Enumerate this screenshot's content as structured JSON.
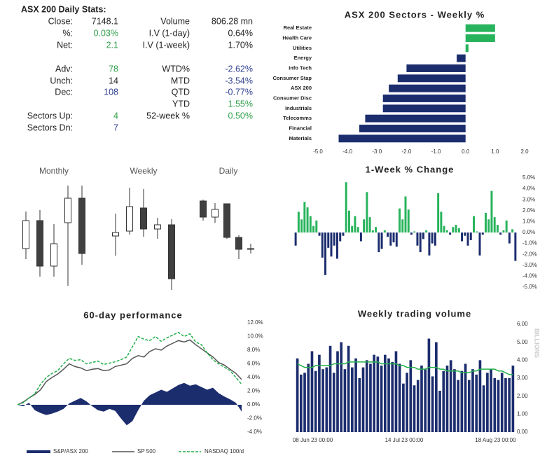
{
  "stats": {
    "title": "ASX 200 Daily Stats:",
    "left": [
      {
        "label": "Close:",
        "value": "7148.1",
        "color": "#222222"
      },
      {
        "label": "%:",
        "value": "0.03%",
        "color": "#2e9e48"
      },
      {
        "label": "Net:",
        "value": "2.1",
        "color": "#2e9e48"
      },
      {
        "label": "Adv:",
        "value": "78",
        "color": "#2e9e48"
      },
      {
        "label": "Unch:",
        "value": "14",
        "color": "#222222"
      },
      {
        "label": "Dec:",
        "value": "108",
        "color": "#2f3f8f"
      },
      {
        "label": "Sectors Up:",
        "value": "4",
        "color": "#2e9e48"
      },
      {
        "label": "Sectors Dn:",
        "value": "7",
        "color": "#2f3f8f"
      }
    ],
    "right": [
      {
        "label": "Volume",
        "value": "806.28 mn",
        "color": "#222222"
      },
      {
        "label": "I.V (1-day)",
        "value": "0.64%",
        "color": "#222222"
      },
      {
        "label": "I.V (1-week)",
        "value": "1.70%",
        "color": "#222222"
      },
      {
        "label": "WTD%",
        "value": "-2.62%",
        "color": "#2f3f8f"
      },
      {
        "label": "MTD",
        "value": "-3.54%",
        "color": "#2f3f8f"
      },
      {
        "label": "QTD",
        "value": "-0.77%",
        "color": "#2f3f8f"
      },
      {
        "label": "YTD",
        "value": "1.55%",
        "color": "#2e9e48"
      },
      {
        "label": "52-week %",
        "value": "0.50%",
        "color": "#2e9e48"
      }
    ]
  },
  "chart_data": [
    {
      "type": "bar",
      "orientation": "horizontal",
      "title": "ASX 200 Sectors - Weekly %",
      "categories": [
        "Real Estate",
        "Health Care",
        "Utilities",
        "Energy",
        "Info Tech",
        "Consumer Stap",
        "ASX 200",
        "Consumer Disc",
        "Industrials",
        "Telecomms",
        "Financial",
        "Materials"
      ],
      "values": [
        1.0,
        1.0,
        0.1,
        -0.3,
        -2.0,
        -2.3,
        -2.6,
        -2.8,
        -2.8,
        -3.4,
        -3.6,
        -4.3
      ],
      "positive_color": "#27b35b",
      "negative_color": "#1c2d6e",
      "xlim": [
        -5,
        2
      ],
      "xticks": [
        {
          "value": -5,
          "label": "-5.0"
        },
        {
          "value": -4,
          "label": "-4.0"
        },
        {
          "value": -3,
          "label": "-3.0"
        },
        {
          "value": -2,
          "label": "-2.0"
        },
        {
          "value": -1,
          "label": "-1.0"
        },
        {
          "value": 0,
          "label": "0.0"
        },
        {
          "value": 1,
          "label": "1.0"
        },
        {
          "value": 2,
          "label": "2.0"
        }
      ]
    },
    {
      "type": "candlestick",
      "title": "Monthly",
      "up_color": "#ffffff",
      "down_color": "#404040",
      "ylim": [
        0,
        160
      ],
      "open": [
        65,
        105,
        40,
        102,
        137
      ],
      "high": [
        118,
        120,
        100,
        155,
        155
      ],
      "low": [
        50,
        25,
        25,
        12,
        42
      ],
      "close": [
        105,
        40,
        72,
        137,
        58
      ]
    },
    {
      "type": "candlestick",
      "title": "Weekly",
      "up_color": "#ffffff",
      "down_color": "#404040",
      "ylim": [
        0,
        160
      ],
      "open": [
        83,
        90,
        123,
        93,
        99
      ],
      "high": [
        115,
        152,
        150,
        109,
        107
      ],
      "low": [
        55,
        85,
        82,
        79,
        6
      ],
      "close": [
        88,
        125,
        93,
        99,
        22
      ]
    },
    {
      "type": "candlestick",
      "title": "Daily",
      "up_color": "#ffffff",
      "down_color": "#404040",
      "ylim": [
        0,
        160
      ],
      "open": [
        133,
        110,
        129,
        81,
        65
      ],
      "high": [
        135,
        130,
        129,
        84,
        72
      ],
      "low": [
        105,
        102,
        79,
        50,
        58
      ],
      "close": [
        110,
        121,
        81,
        64,
        64
      ]
    },
    {
      "type": "bar",
      "title": "1-Week % Change",
      "values": [
        -1.2,
        1.9,
        1.2,
        2.8,
        2.3,
        1.5,
        0.6,
        1.1,
        -0.3,
        -2.3,
        -3.9,
        -1.4,
        -2.2,
        -1.2,
        -2.4,
        -0.8,
        -0.3,
        4.6,
        2.0,
        0.6,
        1.5,
        0.5,
        -0.8,
        1.2,
        3.7,
        1.4,
        0.2,
        0.5,
        -1.8,
        -1.5,
        0.2,
        -0.4,
        -1.2,
        -0.9,
        -1.3,
        2.2,
        1.2,
        3.3,
        2.1,
        -0.2,
        0.1,
        -1.2,
        -1.8,
        -0.6,
        0.2,
        -2.1,
        -1.0,
        -1.2,
        3.6,
        1.9,
        0.6,
        0.2,
        -0.2,
        0.5,
        0.7,
        0.4,
        -0.8,
        -0.3,
        -1.2,
        -0.7,
        1.5,
        0.1,
        -2.1,
        -0.2,
        1.8,
        1.2,
        3.8,
        1.4,
        0.7,
        -0.2,
        0.2,
        1.1,
        -1.0,
        0.3,
        -2.6
      ],
      "positive_color": "#27b35b",
      "negative_color": "#1c2d6e",
      "ylim": [
        -5,
        5
      ],
      "yticks": [
        {
          "value": 5,
          "label": "5.0%"
        },
        {
          "value": 4,
          "label": "4.0%"
        },
        {
          "value": 3,
          "label": "3.0%"
        },
        {
          "value": 2,
          "label": "2.0%"
        },
        {
          "value": 1,
          "label": "1.0%"
        },
        {
          "value": 0,
          "label": "0.0%"
        },
        {
          "value": -1,
          "label": "-1.0%"
        },
        {
          "value": -2,
          "label": "-2.0%"
        },
        {
          "value": -3,
          "label": "-3.0%"
        },
        {
          "value": -4,
          "label": "-4.0%"
        },
        {
          "value": -5,
          "label": "-5.0%"
        }
      ]
    },
    {
      "type": "line",
      "title": "60-day performance",
      "series": [
        {
          "name": "S&P/ASX 200",
          "color": "#1c2d6e",
          "style": "area",
          "values": [
            0,
            -0.2,
            0.3,
            -0.8,
            -1.2,
            -1.5,
            -1.3,
            -1.0,
            -0.6,
            0.2,
            0.6,
            1.0,
            0.5,
            -0.2,
            -0.8,
            -1.0,
            -0.6,
            -0.9,
            -2.0,
            -3.0,
            -2.4,
            -0.8,
            0.6,
            1.4,
            1.8,
            2.2,
            1.9,
            2.4,
            2.9,
            3.2,
            2.8,
            3.0,
            2.6,
            2.2,
            2.5,
            1.7,
            1.2,
            0.8,
            0.3,
            -1.0
          ]
        },
        {
          "name": "SP 500",
          "color": "#555555",
          "style": "solid",
          "values": [
            0,
            0.4,
            1.0,
            1.5,
            2.2,
            3.4,
            4.0,
            4.5,
            5.2,
            6.0,
            5.6,
            5.4,
            5.0,
            5.2,
            5.3,
            5.0,
            5.1,
            5.6,
            5.8,
            6.0,
            6.8,
            7.2,
            7.0,
            7.8,
            8.2,
            8.0,
            8.6,
            9.0,
            9.4,
            9.2,
            9.5,
            8.8,
            8.2,
            7.6,
            7.0,
            6.2,
            5.8,
            5.2,
            4.6,
            3.7
          ]
        },
        {
          "name": "NASDAQ 100/d",
          "color": "#22b04b",
          "style": "dashed",
          "values": [
            0,
            0.3,
            1.0,
            1.6,
            3.0,
            4.0,
            4.6,
            5.0,
            6.0,
            6.8,
            6.5,
            6.6,
            6.0,
            6.2,
            6.4,
            5.9,
            6.1,
            6.3,
            6.6,
            7.0,
            8.5,
            10.0,
            9.6,
            9.4,
            10.0,
            9.3,
            9.8,
            10.2,
            10.6,
            10.0,
            10.4,
            9.2,
            8.8,
            7.6,
            6.6,
            6.0,
            5.5,
            5.0,
            4.0,
            3.0
          ]
        }
      ],
      "ylim": [
        -4,
        12
      ],
      "yticks": [
        {
          "value": 12,
          "label": "12.0%"
        },
        {
          "value": 10,
          "label": "10.0%"
        },
        {
          "value": 8,
          "label": "8.0%"
        },
        {
          "value": 6,
          "label": "6.0%"
        },
        {
          "value": 4,
          "label": "4.0%"
        },
        {
          "value": 2,
          "label": "2.0%"
        },
        {
          "value": 0,
          "label": "0.0%"
        },
        {
          "value": -2,
          "label": "-2.0%"
        },
        {
          "value": -4,
          "label": "-4.0%"
        }
      ]
    },
    {
      "type": "bar",
      "title": "Weekly trading volume",
      "ylabel": "BILLIONS",
      "categories": [
        null,
        null,
        null,
        null,
        null,
        null,
        null,
        null,
        null,
        "08 Jun 23 00:00",
        null,
        null,
        null,
        null,
        null,
        null,
        null,
        null,
        null,
        null,
        null,
        null,
        null,
        null,
        null,
        null,
        null,
        null,
        null,
        null,
        null,
        null,
        null,
        null,
        "14 Jul 23 00:00",
        null,
        null,
        null,
        null,
        null,
        null,
        null,
        null,
        null,
        null,
        null,
        null,
        null,
        null,
        null,
        null,
        null,
        null,
        null,
        null,
        null,
        null,
        null,
        null,
        "18 Aug 23 00:00"
      ],
      "series": [
        {
          "type": "bar",
          "color": "#1c2d6e",
          "values": [
            4.1,
            3.2,
            3.3,
            3.8,
            4.5,
            3.4,
            4.3,
            3.5,
            3.6,
            4.8,
            3.3,
            4.5,
            5.0,
            3.5,
            4.8,
            3.6,
            4.1,
            3.0,
            3.6,
            4.0,
            3.8,
            4.3,
            4.2,
            3.7,
            4.3,
            4.1,
            3.9,
            4.5,
            3.8,
            2.7,
            3.3,
            4.0,
            2.6,
            2.9,
            3.7,
            3.5,
            5.2,
            3.1,
            5.0,
            2.3,
            3.4,
            3.7,
            4.0,
            3.5,
            2.9,
            3.4,
            3.8,
            2.9,
            3.5,
            3.2,
            4.0,
            2.6,
            3.3,
            3.5,
            3.0,
            2.9,
            3.3,
            3.0,
            3.0,
            3.7
          ]
        },
        {
          "type": "line",
          "color": "#22b04b",
          "values": [
            3.8,
            3.7,
            3.6,
            3.6,
            3.6,
            3.7,
            3.7,
            3.7,
            3.7,
            3.7,
            3.8,
            3.8,
            3.8,
            3.8,
            3.9,
            3.9,
            3.9,
            3.9,
            3.9,
            3.9,
            3.9,
            3.9,
            3.9,
            3.8,
            3.8,
            3.8,
            3.8,
            3.8,
            3.7,
            3.7,
            3.6,
            3.6,
            3.6,
            3.5,
            3.5,
            3.5,
            3.6,
            3.6,
            3.6,
            3.5,
            3.5,
            3.4,
            3.4,
            3.4,
            3.4,
            3.3,
            3.3,
            3.3,
            3.4,
            3.4,
            3.5,
            3.5,
            3.5,
            3.5,
            3.5,
            3.4,
            3.4,
            3.3,
            3.2,
            3.2
          ]
        }
      ],
      "ylim": [
        0,
        6
      ],
      "yticks": [
        {
          "value": 0,
          "label": "0.00"
        },
        {
          "value": 1,
          "label": "1.00"
        },
        {
          "value": 2,
          "label": "2.00"
        },
        {
          "value": 3,
          "label": "3.00"
        },
        {
          "value": 4,
          "label": "4.00"
        },
        {
          "value": 5,
          "label": "5.00"
        },
        {
          "value": 6,
          "label": "6.00"
        }
      ]
    }
  ]
}
